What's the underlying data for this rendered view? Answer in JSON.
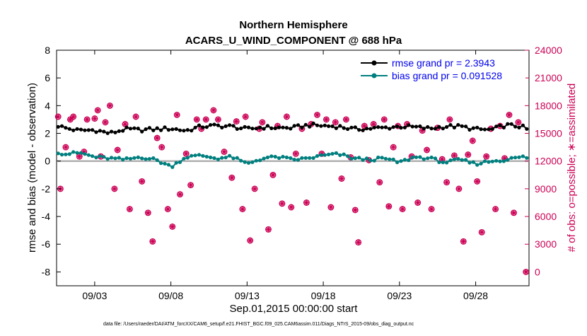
{
  "chart_data": {
    "type": "line",
    "title": "Northern Hemisphere",
    "subtitle": "ACARS_U_WIND_COMPONENT @ 688 hPa",
    "xlabel": "Sep.01,2015 00:00:00 start",
    "ylabel": "rmse and bias (model - observation)",
    "ylabel_right": "# of obs: o=possible; ∗=assimilated",
    "footer": "data file: /Users/raeder/DAI/ATM_forcXX/CAM6_setup/f.e21.FHIST_BGC.f09_025.CAM6assim.011/Diags_NTrS_2015-09/obs_diag_output.nc",
    "xlim": [
      0.5,
      31.5
    ],
    "ylim": [
      -9,
      8
    ],
    "ylim_right": [
      -1500,
      24000
    ],
    "x_ticks": [
      {
        "x": 3,
        "label": "09/03"
      },
      {
        "x": 8,
        "label": "09/08"
      },
      {
        "x": 13,
        "label": "09/13"
      },
      {
        "x": 18,
        "label": "09/18"
      },
      {
        "x": 23,
        "label": "09/23"
      },
      {
        "x": 28,
        "label": "09/28"
      }
    ],
    "y_ticks_left": [
      "8",
      "6",
      "4",
      "2",
      "0",
      "-2",
      "-4",
      "-6",
      "-8"
    ],
    "y_ticks_right": [
      "24000",
      "21000",
      "18000",
      "15000",
      "12000",
      "9000",
      "6000",
      "3000",
      "0"
    ],
    "legend": [
      {
        "name": "rmse",
        "label": "rmse grand pr = 2.3943",
        "color": "#000000"
      },
      {
        "name": "bias",
        "label": "bias grand pr = 0.091528",
        "color": "#007f7f"
      }
    ],
    "colors": {
      "rmse": "#000000",
      "bias": "#007f7f",
      "obs": "#cc0055",
      "zero_line": "#b0b0b0"
    },
    "rmse_anchors": [
      [
        0.5,
        2.6
      ],
      [
        1,
        2.4
      ],
      [
        2,
        2.2
      ],
      [
        3,
        2.25
      ],
      [
        4,
        2.0
      ],
      [
        5,
        2.3
      ],
      [
        6,
        2.25
      ],
      [
        7,
        2.3
      ],
      [
        8,
        2.35
      ],
      [
        9,
        2.2
      ],
      [
        10,
        2.5
      ],
      [
        11,
        2.55
      ],
      [
        12,
        2.5
      ],
      [
        13,
        2.3
      ],
      [
        14,
        2.45
      ],
      [
        15,
        2.4
      ],
      [
        16,
        2.4
      ],
      [
        17,
        2.6
      ],
      [
        18,
        2.55
      ],
      [
        19,
        2.5
      ],
      [
        20,
        2.3
      ],
      [
        21,
        2.35
      ],
      [
        22,
        2.4
      ],
      [
        23,
        2.5
      ],
      [
        24,
        2.45
      ],
      [
        25,
        2.35
      ],
      [
        26,
        2.5
      ],
      [
        27,
        2.5
      ],
      [
        28,
        2.3
      ],
      [
        29,
        2.25
      ],
      [
        30,
        2.6
      ],
      [
        31,
        2.5
      ],
      [
        31.5,
        2.2
      ]
    ],
    "bias_anchors": [
      [
        0.5,
        0.7
      ],
      [
        1,
        0.5
      ],
      [
        2,
        0.6
      ],
      [
        3,
        0.3
      ],
      [
        4,
        0.2
      ],
      [
        5,
        0.1
      ],
      [
        6,
        0.3
      ],
      [
        7,
        0.1
      ],
      [
        8,
        -0.4
      ],
      [
        9,
        0.3
      ],
      [
        10,
        0.4
      ],
      [
        11,
        0.2
      ],
      [
        12,
        0.3
      ],
      [
        13,
        -0.2
      ],
      [
        14,
        0.2
      ],
      [
        15,
        0.3
      ],
      [
        16,
        0.1
      ],
      [
        17,
        0.2
      ],
      [
        18,
        0.4
      ],
      [
        19,
        0.5
      ],
      [
        20,
        0.2
      ],
      [
        21,
        0.1
      ],
      [
        22,
        0.2
      ],
      [
        23,
        -0.1
      ],
      [
        24,
        0.3
      ],
      [
        25,
        0.2
      ],
      [
        26,
        -0.1
      ],
      [
        27,
        0.1
      ],
      [
        28,
        -0.2
      ],
      [
        29,
        0.0
      ],
      [
        30,
        0.1
      ],
      [
        31,
        0.3
      ],
      [
        31.5,
        0.25
      ]
    ],
    "possible_obs": [
      [
        0.6,
        16800
      ],
      [
        0.75,
        9000
      ],
      [
        1.1,
        13500
      ],
      [
        1.4,
        16500
      ],
      [
        1.6,
        16800
      ],
      [
        2,
        12500
      ],
      [
        2.3,
        13000
      ],
      [
        2.5,
        16500
      ],
      [
        3.0,
        16600
      ],
      [
        3.2,
        17500
      ],
      [
        3.4,
        12500
      ],
      [
        3.7,
        16200
      ],
      [
        4.0,
        18000
      ],
      [
        4.3,
        9000
      ],
      [
        4.5,
        13200
      ],
      [
        5.0,
        16000
      ],
      [
        5.3,
        6800
      ],
      [
        5.7,
        16800
      ],
      [
        6.1,
        9800
      ],
      [
        6.5,
        6400
      ],
      [
        6.8,
        3300
      ],
      [
        7.1,
        14500
      ],
      [
        7.4,
        13500
      ],
      [
        7.8,
        6800
      ],
      [
        8.1,
        4900
      ],
      [
        8.4,
        17000
      ],
      [
        8.6,
        8400
      ],
      [
        9.0,
        12800
      ],
      [
        9.3,
        9400
      ],
      [
        9.7,
        16500
      ],
      [
        10.0,
        15500
      ],
      [
        10.3,
        16500
      ],
      [
        10.8,
        17500
      ],
      [
        11.1,
        16500
      ],
      [
        11.5,
        13000
      ],
      [
        12.0,
        10200
      ],
      [
        12.3,
        16300
      ],
      [
        12.7,
        6800
      ],
      [
        12.9,
        16800
      ],
      [
        13.2,
        3400
      ],
      [
        13.5,
        9000
      ],
      [
        13.8,
        15500
      ],
      [
        14.0,
        16200
      ],
      [
        14.4,
        4600
      ],
      [
        14.7,
        10500
      ],
      [
        15.0,
        15800
      ],
      [
        15.3,
        7400
      ],
      [
        15.6,
        16800
      ],
      [
        15.9,
        7000
      ],
      [
        16.2,
        12800
      ],
      [
        16.6,
        15500
      ],
      [
        16.9,
        7500
      ],
      [
        17.2,
        16000
      ],
      [
        17.6,
        17000
      ],
      [
        17.9,
        12800
      ],
      [
        18.2,
        16500
      ],
      [
        18.5,
        7000
      ],
      [
        18.8,
        16200
      ],
      [
        19.2,
        10100
      ],
      [
        19.5,
        16500
      ],
      [
        19.8,
        12400
      ],
      [
        20.1,
        6700
      ],
      [
        20.3,
        3200
      ],
      [
        20.7,
        15800
      ],
      [
        21.0,
        12100
      ],
      [
        21.3,
        16000
      ],
      [
        21.7,
        9700
      ],
      [
        22.0,
        16500
      ],
      [
        22.3,
        7100
      ],
      [
        22.6,
        13500
      ],
      [
        22.9,
        15800
      ],
      [
        23.2,
        6800
      ],
      [
        23.5,
        16000
      ],
      [
        23.8,
        12500
      ],
      [
        24.2,
        7500
      ],
      [
        24.5,
        15300
      ],
      [
        24.8,
        13200
      ],
      [
        25.1,
        6800
      ],
      [
        25.5,
        15600
      ],
      [
        25.8,
        12200
      ],
      [
        26.1,
        9700
      ],
      [
        26.3,
        16500
      ],
      [
        26.6,
        12600
      ],
      [
        26.9,
        9000
      ],
      [
        27.2,
        3300
      ],
      [
        27.5,
        12700
      ],
      [
        27.8,
        14200
      ],
      [
        28.1,
        9800
      ],
      [
        28.4,
        4300
      ],
      [
        28.7,
        12500
      ],
      [
        29.0,
        15500
      ],
      [
        29.3,
        6800
      ],
      [
        29.6,
        15800
      ],
      [
        29.9,
        12300
      ],
      [
        30.2,
        17000
      ],
      [
        30.5,
        6400
      ],
      [
        30.8,
        16200
      ],
      [
        31.3,
        0
      ]
    ]
  }
}
